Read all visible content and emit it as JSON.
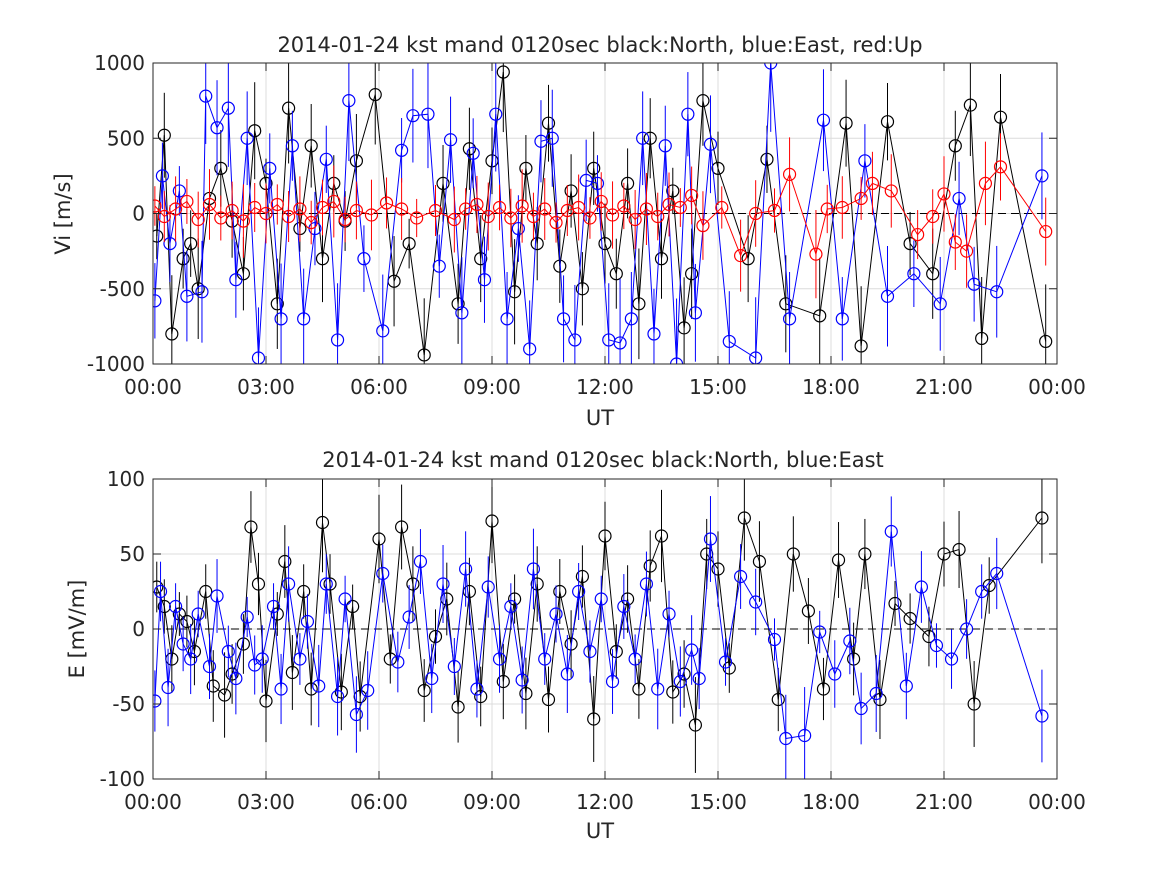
{
  "chart_data": [
    {
      "type": "scatter",
      "title": "2014-01-24 kst mand 0120sec black:North, blue:East, red:Up",
      "xlabel": "UT",
      "ylabel": "Vi [m/s]",
      "xlim_hours": [
        0,
        24
      ],
      "ylim": [
        -1000,
        1000
      ],
      "xticks": [
        "00:00",
        "03:00",
        "06:00",
        "09:00",
        "12:00",
        "15:00",
        "18:00",
        "21:00",
        "00:00"
      ],
      "yticks": [
        "-1000",
        "-500",
        "0",
        "500",
        "1000"
      ],
      "grid": true,
      "zero_reference_line": "dashed",
      "series": [
        {
          "name": "North",
          "color": "#000000",
          "x": [
            0.1,
            0.3,
            0.5,
            0.8,
            1.0,
            1.2,
            1.5,
            1.8,
            2.1,
            2.4,
            2.7,
            3.0,
            3.3,
            3.6,
            3.9,
            4.2,
            4.5,
            4.8,
            5.1,
            5.4,
            5.9,
            6.4,
            6.8,
            7.2,
            7.7,
            8.1,
            8.4,
            8.7,
            9.0,
            9.3,
            9.6,
            9.9,
            10.2,
            10.5,
            10.8,
            11.1,
            11.4,
            11.7,
            12.0,
            12.3,
            12.6,
            12.9,
            13.2,
            13.5,
            13.8,
            14.1,
            14.3,
            14.6,
            15.0,
            15.8,
            16.3,
            16.8,
            17.7,
            18.4,
            18.8,
            19.5,
            20.1,
            20.7,
            21.3,
            21.7,
            22.0,
            22.5,
            23.7
          ],
          "y": [
            -150,
            520,
            -800,
            -300,
            -200,
            -500,
            100,
            300,
            -50,
            -400,
            550,
            200,
            -600,
            700,
            -100,
            450,
            -300,
            200,
            -50,
            350,
            790,
            -450,
            -200,
            -940,
            200,
            -600,
            430,
            -300,
            350,
            940,
            -520,
            300,
            -200,
            600,
            -350,
            150,
            -500,
            300,
            -200,
            -400,
            200,
            -600,
            500,
            -300,
            150,
            -760,
            -400,
            750,
            300,
            -300,
            360,
            -600,
            -680,
            600,
            -880,
            610,
            -200,
            -400,
            450,
            720,
            -830,
            640,
            -850
          ]
        },
        {
          "name": "East",
          "color": "#0000ff",
          "x": [
            0.05,
            0.25,
            0.45,
            0.7,
            0.9,
            1.3,
            1.4,
            1.7,
            2.0,
            2.2,
            2.5,
            2.8,
            3.1,
            3.4,
            3.7,
            4.0,
            4.3,
            4.6,
            4.9,
            5.2,
            5.6,
            6.1,
            6.6,
            6.9,
            7.3,
            7.6,
            7.9,
            8.2,
            8.5,
            8.8,
            9.1,
            9.4,
            9.7,
            10.0,
            10.3,
            10.6,
            10.9,
            11.2,
            11.5,
            11.8,
            12.1,
            12.4,
            12.7,
            13.0,
            13.3,
            13.6,
            13.9,
            14.2,
            14.4,
            14.8,
            15.3,
            16.0,
            16.4,
            16.9,
            17.8,
            18.3,
            18.9,
            19.5,
            20.2,
            20.9,
            21.4,
            21.8,
            22.4,
            23.6
          ],
          "y": [
            -580,
            250,
            -200,
            150,
            -550,
            -520,
            780,
            570,
            700,
            -440,
            500,
            -960,
            300,
            -700,
            450,
            -700,
            -100,
            360,
            -840,
            750,
            -300,
            -780,
            420,
            650,
            660,
            -350,
            490,
            -660,
            400,
            -440,
            660,
            -700,
            -100,
            -900,
            480,
            500,
            -700,
            -840,
            220,
            200,
            -840,
            -860,
            -700,
            500,
            -800,
            450,
            -1000,
            660,
            -660,
            460,
            -850,
            -960,
            1000,
            -700,
            620,
            -700,
            350,
            -550,
            -400,
            -600,
            100,
            -470,
            -520,
            250
          ]
        },
        {
          "name": "Up",
          "color": "#ff0000",
          "x": [
            0.05,
            0.3,
            0.6,
            0.9,
            1.2,
            1.5,
            1.8,
            2.1,
            2.4,
            2.7,
            3.0,
            3.3,
            3.6,
            3.9,
            4.2,
            4.5,
            4.8,
            5.1,
            5.4,
            5.8,
            6.2,
            6.6,
            7.0,
            7.5,
            8.0,
            8.3,
            8.6,
            8.9,
            9.2,
            9.5,
            9.8,
            10.1,
            10.4,
            10.7,
            11.0,
            11.3,
            11.6,
            11.9,
            12.2,
            12.5,
            12.8,
            13.1,
            13.4,
            13.7,
            14.0,
            14.3,
            14.6,
            15.1,
            15.6,
            16.0,
            16.5,
            16.9,
            17.6,
            17.9,
            18.3,
            18.8,
            19.1,
            19.6,
            20.3,
            20.7,
            21.0,
            21.3,
            21.6,
            22.1,
            22.5,
            23.7
          ],
          "y": [
            50,
            -20,
            30,
            80,
            -40,
            60,
            -30,
            20,
            -50,
            40,
            0,
            60,
            -20,
            30,
            -60,
            40,
            80,
            -40,
            20,
            -10,
            70,
            30,
            -30,
            20,
            -40,
            30,
            60,
            -20,
            40,
            -30,
            50,
            -20,
            30,
            -60,
            20,
            40,
            -30,
            80,
            -10,
            50,
            -40,
            30,
            -20,
            60,
            40,
            120,
            -80,
            40,
            -280,
            0,
            20,
            260,
            -270,
            30,
            40,
            100,
            200,
            150,
            -140,
            -20,
            130,
            -190,
            -250,
            200,
            310,
            -120
          ]
        }
      ]
    },
    {
      "type": "scatter",
      "title": "2014-01-24 kst mand 0120sec black:North, blue:East",
      "xlabel": "UT",
      "ylabel": "E [mV/m]",
      "xlim_hours": [
        0,
        24
      ],
      "ylim": [
        -100,
        100
      ],
      "xticks": [
        "00:00",
        "03:00",
        "06:00",
        "09:00",
        "12:00",
        "15:00",
        "18:00",
        "21:00",
        "00:00"
      ],
      "yticks": [
        "-100",
        "-50",
        "0",
        "50",
        "100"
      ],
      "grid": true,
      "zero_reference_line": "dashed",
      "series": [
        {
          "name": "North",
          "color": "#000000",
          "x": [
            0.1,
            0.3,
            0.5,
            0.7,
            0.9,
            1.1,
            1.4,
            1.6,
            1.9,
            2.1,
            2.4,
            2.6,
            2.8,
            3.0,
            3.3,
            3.5,
            3.7,
            4.0,
            4.2,
            4.5,
            4.7,
            5.0,
            5.3,
            5.5,
            6.0,
            6.3,
            6.6,
            6.9,
            7.2,
            7.5,
            7.8,
            8.1,
            8.4,
            8.7,
            9.0,
            9.3,
            9.6,
            9.9,
            10.2,
            10.5,
            10.8,
            11.1,
            11.4,
            11.7,
            12.0,
            12.3,
            12.6,
            12.9,
            13.2,
            13.5,
            13.8,
            14.1,
            14.4,
            14.7,
            15.0,
            15.3,
            15.7,
            16.1,
            16.6,
            17.0,
            17.4,
            17.8,
            18.2,
            18.6,
            18.9,
            19.3,
            19.7,
            20.1,
            20.6,
            21.0,
            21.4,
            21.8,
            22.2,
            23.6
          ],
          "y": [
            28,
            15,
            -20,
            10,
            5,
            -15,
            25,
            -38,
            -44,
            -30,
            -10,
            68,
            30,
            -48,
            10,
            45,
            -29,
            25,
            -40,
            71,
            30,
            -42,
            15,
            -45,
            60,
            -20,
            68,
            30,
            -41,
            -5,
            20,
            -52,
            25,
            -45,
            72,
            -35,
            20,
            -43,
            30,
            -47,
            25,
            -10,
            35,
            -60,
            62,
            -15,
            20,
            -40,
            42,
            62,
            -42,
            -30,
            -64,
            50,
            40,
            -26,
            74,
            45,
            -47,
            50,
            12,
            -40,
            46,
            -20,
            50,
            -47,
            17,
            7,
            -5,
            50,
            53,
            -50,
            29,
            74
          ]
        },
        {
          "name": "East",
          "color": "#0000ff",
          "x": [
            0.05,
            0.2,
            0.4,
            0.6,
            0.8,
            1.0,
            1.2,
            1.5,
            1.7,
            2.0,
            2.2,
            2.5,
            2.7,
            2.9,
            3.2,
            3.4,
            3.6,
            3.9,
            4.1,
            4.4,
            4.6,
            4.9,
            5.1,
            5.4,
            5.7,
            6.1,
            6.5,
            6.8,
            7.1,
            7.4,
            7.7,
            8.0,
            8.3,
            8.6,
            8.9,
            9.2,
            9.5,
            9.8,
            10.1,
            10.4,
            10.7,
            11.0,
            11.3,
            11.6,
            11.9,
            12.2,
            12.5,
            12.8,
            13.1,
            13.4,
            13.7,
            14.0,
            14.3,
            14.5,
            14.8,
            15.2,
            15.6,
            16.0,
            16.5,
            16.8,
            17.3,
            17.7,
            18.1,
            18.5,
            18.8,
            19.2,
            19.6,
            20.0,
            20.4,
            20.8,
            21.2,
            21.6,
            22.0,
            22.4,
            23.6
          ],
          "y": [
            -48,
            25,
            -39,
            15,
            -10,
            -20,
            10,
            -25,
            22,
            -15,
            -33,
            8,
            -24,
            -20,
            15,
            -40,
            30,
            -20,
            5,
            -38,
            30,
            -45,
            20,
            -57,
            -41,
            37,
            -22,
            8,
            45,
            -33,
            30,
            -25,
            40,
            -40,
            28,
            -20,
            15,
            -34,
            40,
            -20,
            10,
            -30,
            25,
            -15,
            20,
            -35,
            15,
            -20,
            30,
            -40,
            10,
            -35,
            -14,
            -33,
            60,
            -22,
            35,
            18,
            -7,
            -73,
            -71,
            -2,
            -30,
            -8,
            -53,
            -43,
            65,
            -38,
            28,
            -11,
            -20,
            0,
            25,
            37,
            -58
          ]
        }
      ]
    }
  ]
}
